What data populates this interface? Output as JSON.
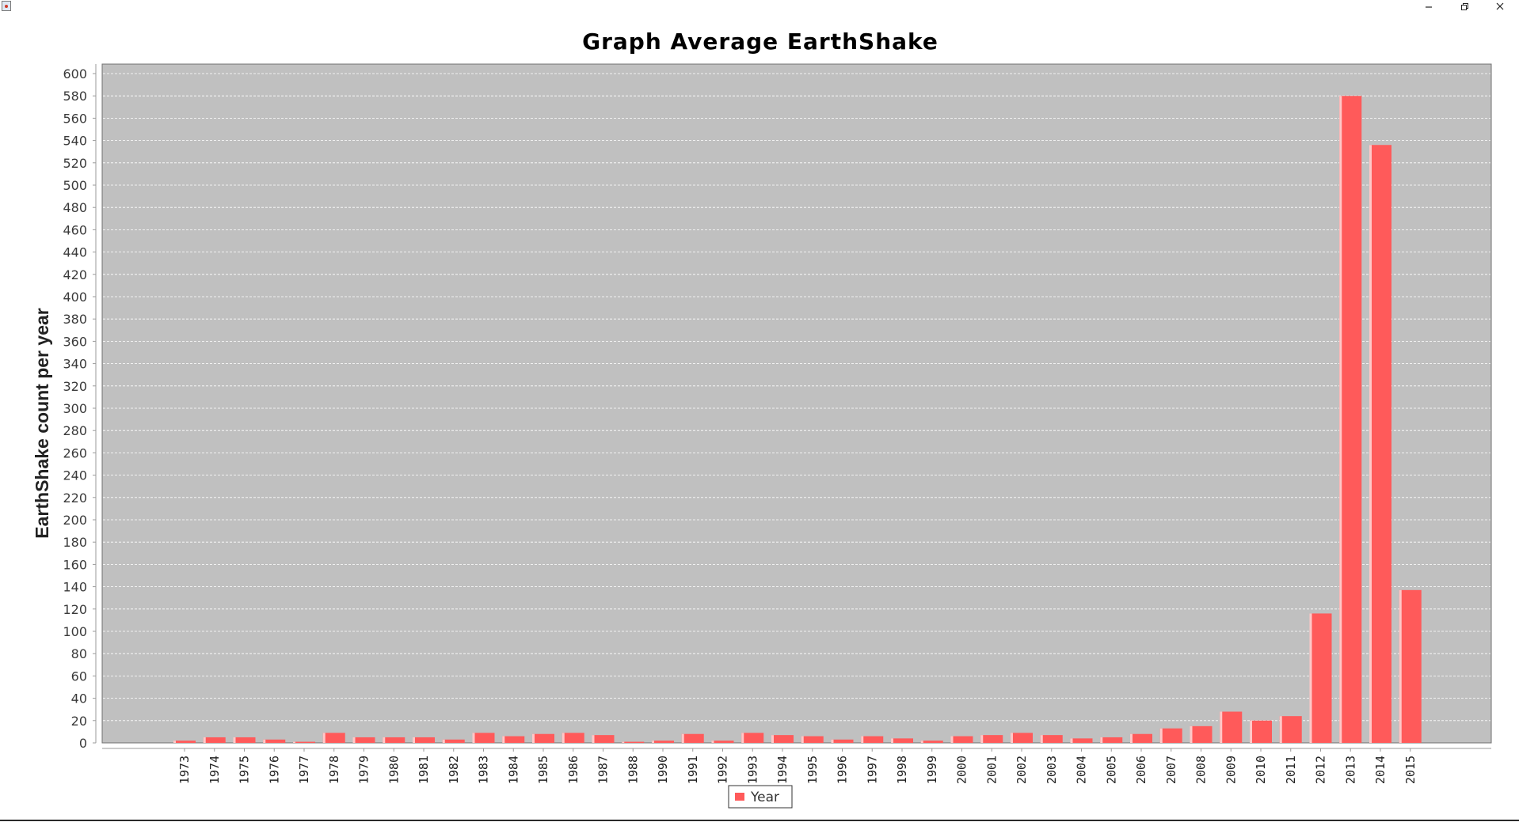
{
  "window": {
    "minimize_glyph": "–",
    "close_glyph": "✕"
  },
  "chart_data": {
    "type": "bar",
    "title": "Graph Average EarthShake",
    "xlabel": "",
    "ylabel": "EarthShake count per year",
    "ylim": [
      0,
      600
    ],
    "ytick_step": 20,
    "grid": true,
    "legend_position": "bottom-center",
    "categories": [
      "1973",
      "1974",
      "1975",
      "1976",
      "1977",
      "1978",
      "1979",
      "1980",
      "1981",
      "1982",
      "1983",
      "1984",
      "1985",
      "1986",
      "1987",
      "1988",
      "1990",
      "1991",
      "1992",
      "1993",
      "1994",
      "1995",
      "1996",
      "1997",
      "1998",
      "1999",
      "2000",
      "2001",
      "2002",
      "2003",
      "2004",
      "2005",
      "2006",
      "2007",
      "2008",
      "2009",
      "2010",
      "2011",
      "2012",
      "2013",
      "2014",
      "2015"
    ],
    "series": [
      {
        "name": "Year",
        "color": "#ff5a5a",
        "values": [
          2,
          5,
          5,
          3,
          1,
          9,
          5,
          5,
          5,
          3,
          9,
          6,
          8,
          9,
          7,
          1,
          2,
          8,
          2,
          9,
          7,
          6,
          3,
          6,
          4,
          2,
          6,
          7,
          9,
          7,
          4,
          5,
          8,
          13,
          15,
          28,
          20,
          24,
          116,
          580,
          536,
          137
        ]
      }
    ],
    "colors": {
      "plot_background": "#c0c0c0",
      "gridline": "#ffffff",
      "bar": "#ff5a5a"
    }
  }
}
